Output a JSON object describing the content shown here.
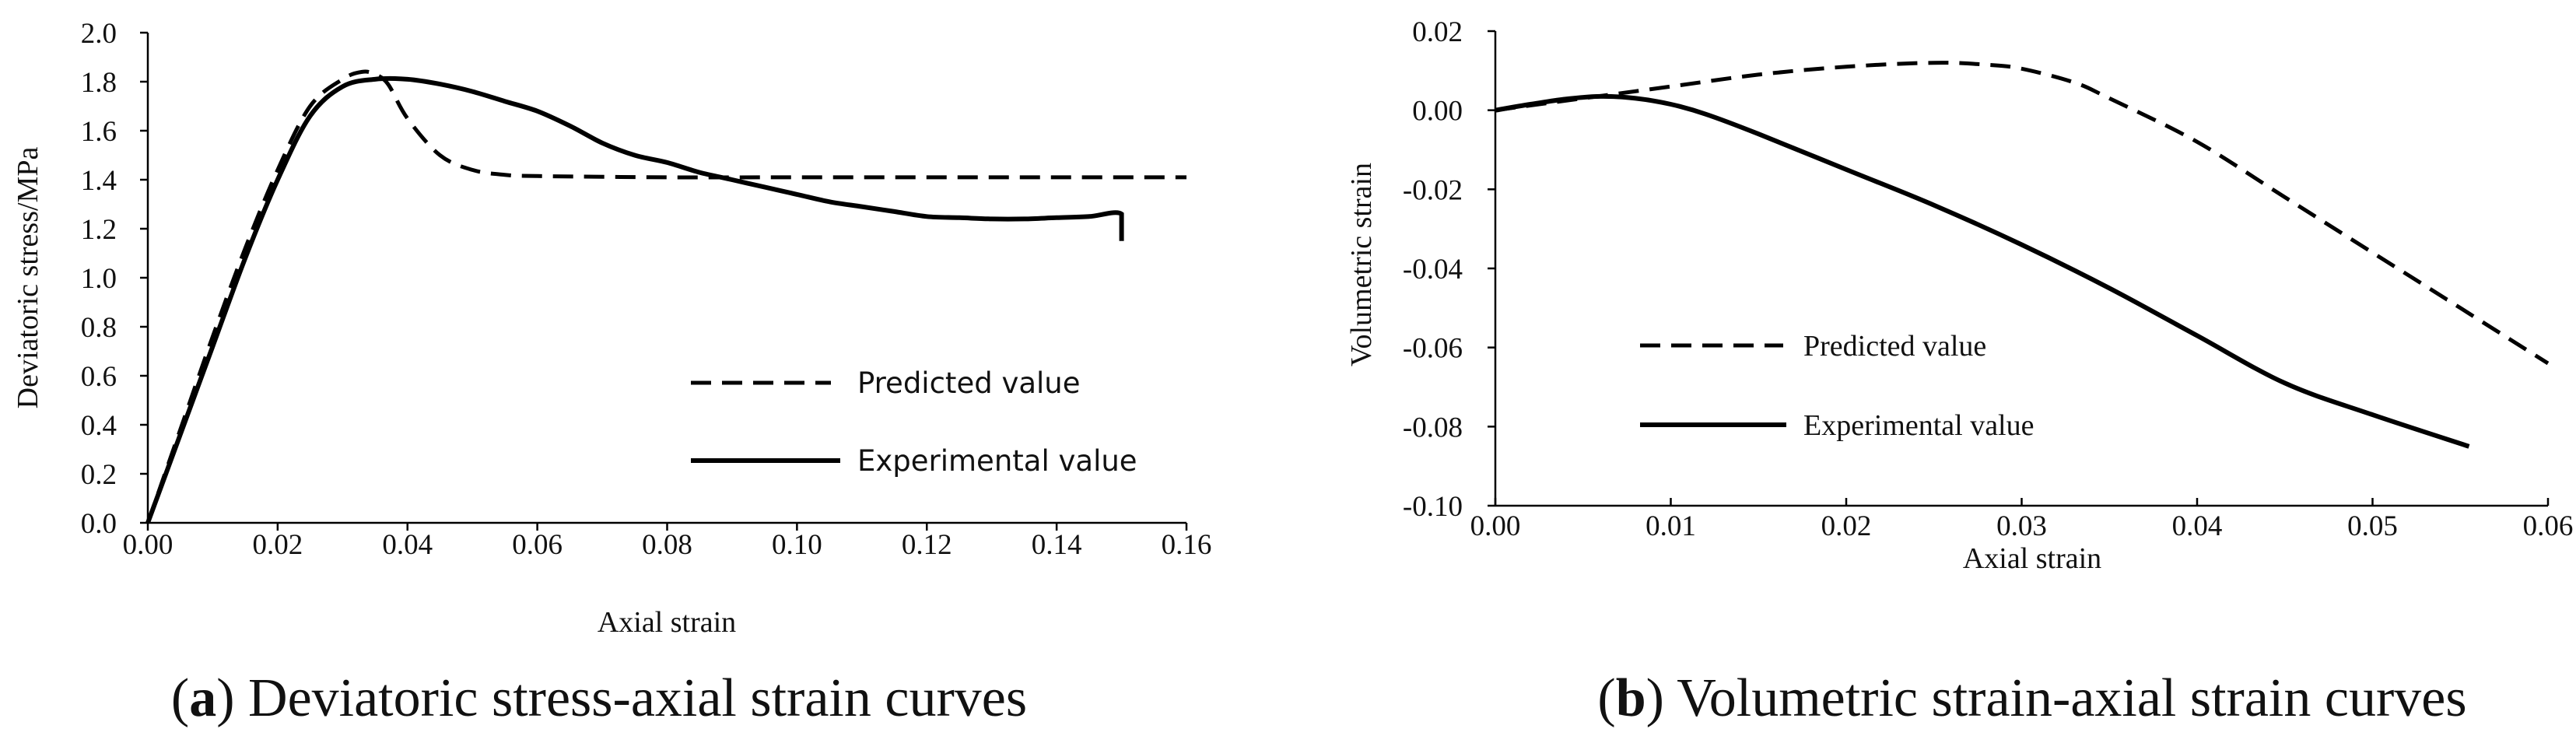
{
  "chart_data": [
    {
      "type": "line",
      "panel": "a",
      "caption": {
        "letter": "a",
        "text": " Deviatoric stress-axial strain curves"
      },
      "xlabel": "Axial strain",
      "ylabel": "Deviatoric stress/MPa",
      "xlim": [
        0,
        0.16
      ],
      "ylim": [
        0,
        2.0
      ],
      "x_ticks": [
        "0.00",
        "0.02",
        "0.04",
        "0.06",
        "0.08",
        "0.10",
        "0.12",
        "0.14",
        "0.16"
      ],
      "y_ticks": [
        "0.0",
        "0.2",
        "0.4",
        "0.6",
        "0.8",
        "1.0",
        "1.2",
        "1.4",
        "1.6",
        "1.8",
        "2.0"
      ],
      "legend": {
        "position": "lower-right"
      },
      "series": [
        {
          "name": "Predicted value",
          "style": "dashed",
          "x": [
            0,
            0.005,
            0.01,
            0.015,
            0.02,
            0.025,
            0.03,
            0.033,
            0.035,
            0.037,
            0.04,
            0.045,
            0.05,
            0.055,
            0.06,
            0.08,
            0.1,
            0.12,
            0.14,
            0.16
          ],
          "y": [
            0,
            0.38,
            0.76,
            1.12,
            1.44,
            1.7,
            1.81,
            1.84,
            1.83,
            1.79,
            1.65,
            1.5,
            1.44,
            1.42,
            1.415,
            1.41,
            1.41,
            1.41,
            1.41,
            1.41
          ]
        },
        {
          "name": "Experimental value",
          "style": "solid",
          "x": [
            0,
            0.005,
            0.01,
            0.015,
            0.02,
            0.025,
            0.03,
            0.035,
            0.04,
            0.045,
            0.05,
            0.055,
            0.06,
            0.065,
            0.07,
            0.075,
            0.08,
            0.085,
            0.09,
            0.095,
            0.1,
            0.105,
            0.11,
            0.115,
            0.12,
            0.125,
            0.13,
            0.135,
            0.14,
            0.145,
            0.15,
            0.15
          ],
          "y": [
            0,
            0.36,
            0.72,
            1.08,
            1.4,
            1.66,
            1.78,
            1.81,
            1.81,
            1.79,
            1.76,
            1.72,
            1.68,
            1.62,
            1.55,
            1.5,
            1.47,
            1.43,
            1.4,
            1.37,
            1.34,
            1.31,
            1.29,
            1.27,
            1.25,
            1.245,
            1.24,
            1.24,
            1.245,
            1.25,
            1.26,
            1.15
          ]
        }
      ]
    },
    {
      "type": "line",
      "panel": "b",
      "caption": {
        "letter": "b",
        "text": " Volumetric strain-axial strain curves"
      },
      "xlabel": "Axial strain",
      "ylabel": "Volumetric strain",
      "xlim": [
        0,
        0.06
      ],
      "ylim": [
        -0.1,
        0.02
      ],
      "x_ticks": [
        "0.00",
        "0.01",
        "0.02",
        "0.03",
        "0.04",
        "0.05",
        "0.06"
      ],
      "y_ticks": [
        "0.02",
        "0.00",
        "-0.02",
        "-0.04",
        "-0.06",
        "-0.08",
        "-0.10"
      ],
      "legend": {
        "position": "lower-left"
      },
      "series": [
        {
          "name": "Predicted value",
          "style": "dashed",
          "x": [
            0,
            0.005,
            0.01,
            0.015,
            0.02,
            0.025,
            0.028,
            0.03,
            0.033,
            0.035,
            0.04,
            0.045,
            0.05,
            0.055,
            0.06
          ],
          "y": [
            0,
            0.003,
            0.006,
            0.009,
            0.011,
            0.012,
            0.0115,
            0.0105,
            0.007,
            0.003,
            -0.008,
            -0.022,
            -0.036,
            -0.05,
            -0.064
          ]
        },
        {
          "name": "Experimental value",
          "style": "solid",
          "x": [
            0,
            0.002,
            0.004,
            0.006,
            0.008,
            0.01,
            0.012,
            0.015,
            0.02,
            0.025,
            0.03,
            0.035,
            0.04,
            0.045,
            0.05,
            0.0555
          ],
          "y": [
            0,
            0.0015,
            0.0028,
            0.0035,
            0.003,
            0.0015,
            -0.001,
            -0.006,
            -0.015,
            -0.024,
            -0.034,
            -0.045,
            -0.057,
            -0.069,
            -0.077,
            -0.085
          ]
        }
      ]
    }
  ]
}
